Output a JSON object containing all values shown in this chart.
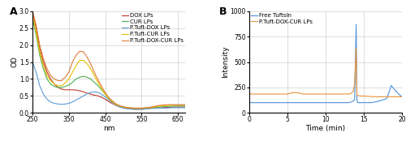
{
  "panel_A": {
    "title": "A",
    "xlabel": "nm",
    "ylabel": "OD",
    "xlim": [
      250,
      670
    ],
    "ylim": [
      0,
      3.0
    ],
    "yticks": [
      0,
      0.5,
      1.0,
      1.5,
      2.0,
      2.5,
      3.0
    ],
    "xticks": [
      250,
      350,
      450,
      550,
      650
    ],
    "series": {
      "DOX LPs": {
        "color": "#c0392b",
        "x": [
          250,
          260,
          270,
          280,
          290,
          300,
          310,
          320,
          330,
          340,
          350,
          360,
          370,
          380,
          390,
          400,
          410,
          420,
          430,
          440,
          450,
          460,
          470,
          480,
          490,
          500,
          510,
          520,
          530,
          540,
          550,
          560,
          570,
          580,
          590,
          600,
          610,
          620,
          630,
          640,
          650,
          660,
          670
        ],
        "y": [
          3.0,
          2.5,
          1.9,
          1.5,
          1.2,
          1.0,
          0.85,
          0.75,
          0.7,
          0.68,
          0.68,
          0.68,
          0.67,
          0.65,
          0.62,
          0.58,
          0.55,
          0.52,
          0.5,
          0.46,
          0.4,
          0.33,
          0.27,
          0.22,
          0.18,
          0.15,
          0.13,
          0.12,
          0.11,
          0.11,
          0.11,
          0.12,
          0.13,
          0.14,
          0.15,
          0.15,
          0.15,
          0.16,
          0.16,
          0.17,
          0.17,
          0.17,
          0.17
        ]
      },
      "CUR LPs": {
        "color": "#4cae4c",
        "x": [
          250,
          260,
          270,
          280,
          290,
          300,
          310,
          320,
          330,
          340,
          350,
          360,
          370,
          380,
          390,
          400,
          410,
          420,
          430,
          440,
          450,
          460,
          470,
          480,
          490,
          500,
          510,
          520,
          530,
          540,
          550,
          560,
          570,
          580,
          590,
          600,
          610,
          620,
          630,
          640,
          650,
          660,
          670
        ],
        "y": [
          2.8,
          2.3,
          1.7,
          1.3,
          1.0,
          0.85,
          0.78,
          0.75,
          0.75,
          0.78,
          0.82,
          0.9,
          1.0,
          1.05,
          1.08,
          1.05,
          1.0,
          0.9,
          0.8,
          0.68,
          0.55,
          0.42,
          0.32,
          0.25,
          0.2,
          0.17,
          0.15,
          0.14,
          0.13,
          0.13,
          0.13,
          0.14,
          0.15,
          0.16,
          0.17,
          0.17,
          0.18,
          0.19,
          0.19,
          0.2,
          0.2,
          0.2,
          0.2
        ]
      },
      "P.Tuft-DOX LPs": {
        "color": "#5b9bd5",
        "x": [
          250,
          260,
          270,
          280,
          290,
          300,
          310,
          320,
          330,
          340,
          350,
          360,
          370,
          380,
          390,
          400,
          410,
          420,
          430,
          440,
          450,
          460,
          470,
          480,
          490,
          500,
          510,
          520,
          530,
          540,
          550,
          560,
          570,
          580,
          590,
          600,
          610,
          620,
          630,
          640,
          650,
          660,
          670
        ],
        "y": [
          1.5,
          1.2,
          0.8,
          0.55,
          0.4,
          0.32,
          0.28,
          0.26,
          0.25,
          0.26,
          0.28,
          0.32,
          0.38,
          0.44,
          0.5,
          0.56,
          0.6,
          0.62,
          0.6,
          0.55,
          0.47,
          0.38,
          0.29,
          0.22,
          0.17,
          0.14,
          0.12,
          0.11,
          0.1,
          0.1,
          0.1,
          0.11,
          0.12,
          0.13,
          0.13,
          0.14,
          0.14,
          0.14,
          0.15,
          0.15,
          0.15,
          0.15,
          0.15
        ]
      },
      "P.Tuft-CUR LPs": {
        "color": "#e8c000",
        "x": [
          250,
          260,
          270,
          280,
          290,
          300,
          310,
          320,
          330,
          340,
          350,
          360,
          370,
          380,
          390,
          400,
          410,
          420,
          430,
          440,
          450,
          460,
          470,
          480,
          490,
          500,
          510,
          520,
          530,
          540,
          550,
          560,
          570,
          580,
          590,
          600,
          610,
          620,
          630,
          640,
          650,
          660,
          670
        ],
        "y": [
          2.9,
          2.4,
          1.8,
          1.4,
          1.1,
          0.95,
          0.85,
          0.8,
          0.8,
          0.88,
          1.0,
          1.2,
          1.4,
          1.55,
          1.55,
          1.45,
          1.3,
          1.1,
          0.9,
          0.72,
          0.55,
          0.42,
          0.32,
          0.24,
          0.2,
          0.17,
          0.15,
          0.14,
          0.13,
          0.13,
          0.13,
          0.14,
          0.15,
          0.16,
          0.18,
          0.2,
          0.21,
          0.22,
          0.22,
          0.23,
          0.23,
          0.23,
          0.23
        ]
      },
      "P.Tuft-DOX-CUR LPs": {
        "color": "#e07b39",
        "x": [
          250,
          260,
          270,
          280,
          290,
          300,
          310,
          320,
          330,
          340,
          350,
          360,
          370,
          380,
          390,
          400,
          410,
          420,
          430,
          440,
          450,
          460,
          470,
          480,
          490,
          500,
          510,
          520,
          530,
          540,
          550,
          560,
          570,
          580,
          590,
          600,
          610,
          620,
          630,
          640,
          650,
          660,
          670
        ],
        "y": [
          3.0,
          2.6,
          2.0,
          1.6,
          1.3,
          1.1,
          1.0,
          0.95,
          0.95,
          1.05,
          1.2,
          1.5,
          1.7,
          1.82,
          1.8,
          1.65,
          1.45,
          1.2,
          0.98,
          0.78,
          0.6,
          0.45,
          0.35,
          0.26,
          0.21,
          0.18,
          0.16,
          0.15,
          0.14,
          0.14,
          0.14,
          0.15,
          0.16,
          0.18,
          0.2,
          0.22,
          0.23,
          0.24,
          0.24,
          0.24,
          0.24,
          0.24,
          0.24
        ]
      }
    }
  },
  "panel_B": {
    "title": "B",
    "xlabel": "Time (min)",
    "ylabel": "Intensity",
    "xlim": [
      0,
      20
    ],
    "ylim": [
      0,
      1000
    ],
    "yticks": [
      0,
      250,
      500,
      750,
      1000
    ],
    "xticks": [
      0,
      5,
      10,
      15,
      20
    ],
    "series": {
      "Free Tuftsin": {
        "color": "#4a90d9",
        "x": [
          0,
          1,
          2,
          3,
          4,
          5,
          5.5,
          6,
          6.5,
          7,
          8,
          9,
          10,
          11,
          12,
          13,
          13.3,
          13.6,
          13.8,
          14.0,
          14.05,
          14.1,
          14.2,
          14.4,
          14.6,
          15,
          16,
          17,
          18,
          18.3,
          18.6,
          18.9,
          19.0,
          19.2,
          19.5,
          19.8,
          20
        ],
        "y": [
          100,
          100,
          100,
          100,
          100,
          100,
          100,
          100,
          100,
          100,
          100,
          100,
          100,
          100,
          100,
          100,
          105,
          115,
          130,
          870,
          500,
          120,
          100,
          100,
          100,
          100,
          100,
          115,
          140,
          200,
          270,
          240,
          230,
          215,
          190,
          170,
          160
        ]
      },
      "P.Tuft-DOX-CUR LPs": {
        "color": "#e8923a",
        "x": [
          0,
          1,
          2,
          3,
          4,
          5,
          5.5,
          6,
          6.5,
          7,
          8,
          9,
          10,
          11,
          12,
          13,
          13.3,
          13.6,
          13.8,
          14.0,
          14.05,
          14.1,
          14.2,
          14.4,
          14.6,
          15,
          16,
          17,
          18,
          18.3,
          18.6,
          19,
          19.5,
          20
        ],
        "y": [
          185,
          185,
          185,
          185,
          185,
          185,
          195,
          200,
          195,
          185,
          185,
          185,
          185,
          185,
          185,
          185,
          190,
          210,
          280,
          640,
          380,
          175,
          170,
          168,
          165,
          165,
          160,
          158,
          158,
          158,
          158,
          158,
          158,
          158
        ]
      }
    }
  },
  "bg_color": "#ffffff",
  "plot_bg_color": "#ffffff",
  "grid_color": "#d0d0d0"
}
